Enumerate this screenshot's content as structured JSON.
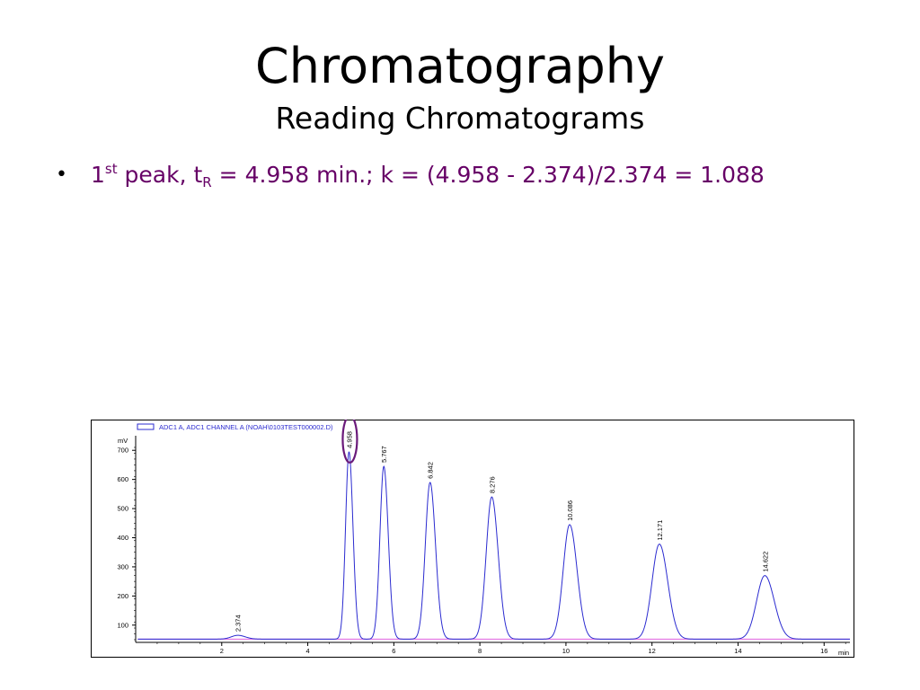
{
  "slide": {
    "title": "Chromatography",
    "subtitle": "Reading Chromatograms",
    "bullet": {
      "pre": "1",
      "sup": "st",
      "mid": " peak, t",
      "sub": "R",
      "post": " = 4.958 min.; k = (4.958 - 2.374)/2.374 = 1.088"
    }
  },
  "colors": {
    "trace": "#2b2bd0",
    "baseline": "#e060e0",
    "highlight": "#6a1a7a",
    "bullet_text": "#660066"
  },
  "chart_data": {
    "type": "line",
    "legend": "ADC1 A, ADC1 CHANNEL A (NOAH\\0103TEST000002.D)",
    "ylabel": "mV",
    "xlabel": "min",
    "xlim": [
      0,
      16.6
    ],
    "ylim": [
      50,
      750
    ],
    "x_ticks": [
      2,
      4,
      6,
      8,
      10,
      12,
      14,
      16
    ],
    "y_ticks": [
      100,
      200,
      300,
      400,
      500,
      600,
      700
    ],
    "baseline_level": 52,
    "peaks": [
      {
        "rt": 2.374,
        "label": "2.374",
        "height": 65,
        "sigma": 0.15
      },
      {
        "rt": 4.958,
        "label": "4.958",
        "height": 695,
        "sigma": 0.08
      },
      {
        "rt": 5.767,
        "label": "5.767",
        "height": 645,
        "sigma": 0.09
      },
      {
        "rt": 6.842,
        "label": "6.842",
        "height": 590,
        "sigma": 0.11
      },
      {
        "rt": 8.276,
        "label": "8.276",
        "height": 540,
        "sigma": 0.13
      },
      {
        "rt": 10.086,
        "label": "10.086",
        "height": 445,
        "sigma": 0.15
      },
      {
        "rt": 12.171,
        "label": "12.171",
        "height": 378,
        "sigma": 0.17
      },
      {
        "rt": 14.622,
        "label": "14.622",
        "height": 270,
        "sigma": 0.19
      }
    ],
    "highlighted_peak": "4.958"
  }
}
